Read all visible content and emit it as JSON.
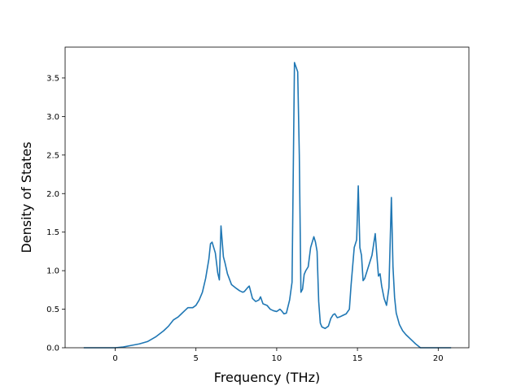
{
  "chart_data": {
    "type": "line",
    "title": "",
    "xlabel": "Frequency (THz)",
    "ylabel": "Density of States",
    "xlim": [
      -3.1,
      21.9
    ],
    "ylim": [
      0.0,
      3.9
    ],
    "xticks": [
      0,
      5,
      10,
      15,
      20
    ],
    "yticks": [
      0.0,
      0.5,
      1.0,
      1.5,
      2.0,
      2.5,
      3.0,
      3.5
    ],
    "xtick_labels": [
      "0",
      "5",
      "10",
      "15",
      "20"
    ],
    "ytick_labels": [
      "0.0",
      "0.5",
      "1.0",
      "1.5",
      "2.0",
      "2.5",
      "3.0",
      "3.5"
    ],
    "grid": false,
    "legend": "none",
    "series_color": "#1f77b4",
    "series": [
      {
        "x": [
          -1.95,
          0.0,
          0.5,
          1.0,
          1.5,
          2.0,
          2.5,
          3.0,
          3.3,
          3.6,
          3.9,
          4.1,
          4.3,
          4.5,
          4.8,
          5.0,
          5.2,
          5.4,
          5.6,
          5.8,
          5.9,
          6.0,
          6.1,
          6.2,
          6.35,
          6.45,
          6.55,
          6.7,
          6.8,
          6.95,
          7.2,
          7.5,
          7.7,
          7.9,
          8.0,
          8.2,
          8.3,
          8.5,
          8.7,
          8.9,
          9.0,
          9.15,
          9.4,
          9.6,
          9.8,
          10.0,
          10.2,
          10.3,
          10.45,
          10.6,
          10.8,
          10.95,
          11.1,
          11.3,
          11.4,
          11.5,
          11.6,
          11.7,
          11.8,
          11.95,
          12.1,
          12.3,
          12.4,
          12.5,
          12.6,
          12.7,
          12.8,
          13.0,
          13.2,
          13.35,
          13.5,
          13.6,
          13.75,
          13.9,
          14.1,
          14.3,
          14.5,
          14.6,
          14.8,
          14.95,
          15.05,
          15.15,
          15.25,
          15.35,
          15.45,
          15.6,
          15.75,
          15.9,
          16.1,
          16.3,
          16.4,
          16.5,
          16.65,
          16.8,
          16.95,
          17.1,
          17.2,
          17.3,
          17.4,
          17.6,
          17.8,
          18.0,
          18.3,
          18.6,
          18.9,
          19.0,
          19.2,
          20.0,
          20.8
        ],
        "y": [
          0.0,
          0.0,
          0.01,
          0.03,
          0.05,
          0.08,
          0.14,
          0.22,
          0.28,
          0.36,
          0.4,
          0.44,
          0.48,
          0.52,
          0.52,
          0.55,
          0.62,
          0.72,
          0.9,
          1.15,
          1.35,
          1.37,
          1.3,
          1.23,
          0.97,
          0.88,
          1.58,
          1.18,
          1.1,
          0.96,
          0.82,
          0.77,
          0.74,
          0.72,
          0.73,
          0.78,
          0.8,
          0.64,
          0.6,
          0.62,
          0.66,
          0.57,
          0.55,
          0.5,
          0.48,
          0.47,
          0.5,
          0.48,
          0.44,
          0.45,
          0.62,
          0.85,
          3.7,
          3.58,
          2.5,
          0.72,
          0.76,
          0.95,
          1.0,
          1.05,
          1.3,
          1.44,
          1.37,
          1.25,
          0.6,
          0.32,
          0.27,
          0.25,
          0.28,
          0.38,
          0.43,
          0.44,
          0.39,
          0.4,
          0.42,
          0.44,
          0.5,
          0.8,
          1.3,
          1.4,
          2.1,
          1.3,
          1.2,
          0.87,
          0.9,
          1.0,
          1.1,
          1.2,
          1.48,
          0.93,
          0.96,
          0.8,
          0.64,
          0.55,
          0.78,
          1.95,
          1.05,
          0.65,
          0.45,
          0.3,
          0.22,
          0.17,
          0.11,
          0.05,
          0.0,
          0.0,
          0.0,
          0.0,
          0.0
        ]
      }
    ]
  }
}
